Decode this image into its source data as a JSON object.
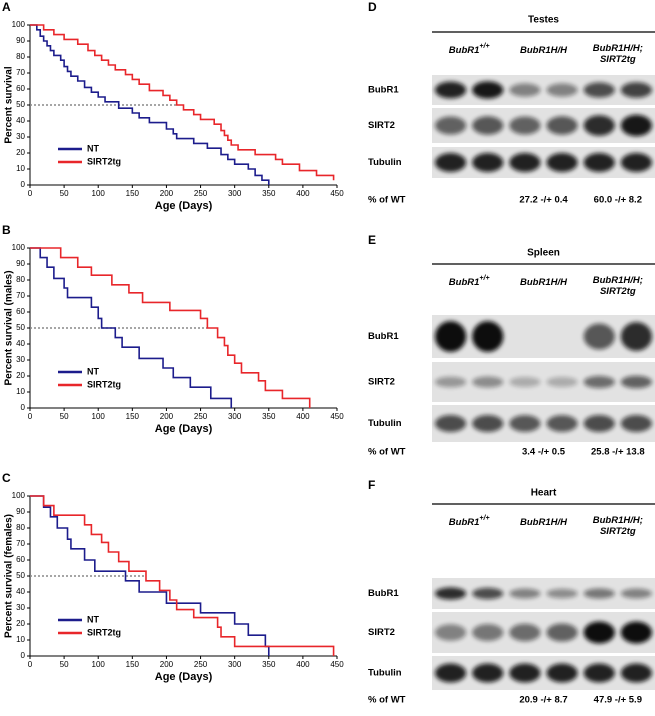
{
  "chart_data": [
    {
      "type": "line",
      "step": true,
      "panel": "A",
      "ylabel": "Percent survival",
      "xlabel": "Age (Days)",
      "xlim": [
        0,
        450
      ],
      "xticks": [
        0,
        50,
        100,
        150,
        200,
        250,
        300,
        350,
        400,
        450
      ],
      "ylim": [
        0,
        100
      ],
      "yticks": [
        0,
        10,
        20,
        30,
        40,
        50,
        60,
        70,
        80,
        90,
        100
      ],
      "reference_line": 50,
      "legend": "lower-left",
      "series": [
        {
          "name": "NT",
          "color": "#1c1c8c",
          "x": [
            0,
            10,
            15,
            20,
            25,
            30,
            35,
            45,
            50,
            55,
            60,
            70,
            80,
            90,
            100,
            110,
            130,
            150,
            160,
            175,
            200,
            210,
            215,
            240,
            260,
            280,
            290,
            300,
            320,
            330,
            340,
            350
          ],
          "values": [
            100,
            97,
            93,
            90,
            87,
            84,
            81,
            78,
            74,
            71,
            68,
            65,
            61,
            58,
            55,
            52,
            48,
            45,
            42,
            39,
            35,
            32,
            29,
            26,
            23,
            19,
            16,
            13,
            10,
            6,
            3,
            0
          ]
        },
        {
          "name": "SIRT2tg",
          "color": "#e8262a",
          "x": [
            0,
            20,
            35,
            50,
            70,
            85,
            95,
            105,
            115,
            125,
            140,
            150,
            160,
            175,
            195,
            205,
            215,
            225,
            240,
            250,
            270,
            280,
            285,
            290,
            295,
            305,
            330,
            360,
            370,
            395,
            420,
            445
          ],
          "values": [
            100,
            97,
            94,
            91,
            88,
            84,
            81,
            78,
            75,
            72,
            69,
            66,
            63,
            59,
            56,
            53,
            50,
            47,
            44,
            41,
            38,
            34,
            31,
            28,
            25,
            22,
            19,
            16,
            13,
            9,
            6,
            3
          ]
        }
      ]
    },
    {
      "type": "line",
      "step": true,
      "panel": "B",
      "ylabel": "Percent survival (males)",
      "xlabel": "Age (Days)",
      "xlim": [
        0,
        450
      ],
      "xticks": [
        0,
        50,
        100,
        150,
        200,
        250,
        300,
        350,
        400,
        450
      ],
      "ylim": [
        0,
        100
      ],
      "yticks": [
        0,
        10,
        20,
        30,
        40,
        50,
        60,
        70,
        80,
        90,
        100
      ],
      "reference_line": 50,
      "legend": "lower-left",
      "series": [
        {
          "name": "NT",
          "color": "#1c1c8c",
          "x": [
            0,
            15,
            25,
            35,
            50,
            55,
            90,
            100,
            105,
            125,
            135,
            160,
            195,
            210,
            235,
            265,
            295
          ],
          "values": [
            100,
            94,
            88,
            81,
            75,
            69,
            63,
            56,
            50,
            44,
            38,
            31,
            25,
            19,
            13,
            6,
            0
          ]
        },
        {
          "name": "SIRT2tg",
          "color": "#e8262a",
          "x": [
            0,
            45,
            70,
            90,
            120,
            145,
            165,
            205,
            250,
            260,
            275,
            285,
            290,
            300,
            310,
            335,
            345,
            370,
            410
          ],
          "values": [
            100,
            94,
            88,
            83,
            77,
            72,
            66,
            61,
            56,
            50,
            44,
            39,
            33,
            28,
            22,
            17,
            11,
            6,
            0
          ]
        }
      ]
    },
    {
      "type": "line",
      "step": true,
      "panel": "C",
      "ylabel": "Percent survival (females)",
      "xlabel": "Age (Days)",
      "xlim": [
        0,
        450
      ],
      "xticks": [
        0,
        50,
        100,
        150,
        200,
        250,
        300,
        350,
        400,
        450
      ],
      "ylim": [
        0,
        100
      ],
      "yticks": [
        0,
        10,
        20,
        30,
        40,
        50,
        60,
        70,
        80,
        90,
        100
      ],
      "reference_line": 50,
      "legend": "lower-left",
      "series": [
        {
          "name": "NT",
          "color": "#1c1c8c",
          "x": [
            0,
            20,
            30,
            40,
            55,
            60,
            80,
            95,
            140,
            160,
            200,
            250,
            300,
            320,
            345,
            350
          ],
          "values": [
            100,
            93,
            87,
            80,
            73,
            67,
            60,
            53,
            47,
            40,
            33,
            27,
            20,
            13,
            6,
            0
          ]
        },
        {
          "name": "SIRT2tg",
          "color": "#e8262a",
          "x": [
            0,
            20,
            35,
            80,
            90,
            105,
            115,
            130,
            145,
            170,
            190,
            205,
            215,
            240,
            275,
            280,
            300,
            445
          ],
          "values": [
            100,
            94,
            88,
            82,
            76,
            71,
            65,
            59,
            53,
            47,
            41,
            35,
            29,
            24,
            18,
            12,
            6,
            0
          ]
        }
      ]
    }
  ],
  "blots": [
    {
      "panel": "D",
      "title": "Testes",
      "groups": [
        {
          "lines": [
            "BubR1"
          ],
          "sup": "+/+"
        },
        {
          "lines": [
            "BubR1H/H"
          ]
        },
        {
          "lines": [
            "BubR1H/H;",
            "SIRT2tg"
          ]
        }
      ],
      "rows": [
        "BubR1",
        "SIRT2",
        "Tubulin"
      ],
      "quant_label": "% of WT",
      "quant": [
        "27.2 -/+ 0.4",
        "60.0 -/+ 8.2"
      ]
    },
    {
      "panel": "E",
      "title": "Spleen",
      "groups": [
        {
          "lines": [
            "BubR1"
          ],
          "sup": "+/+"
        },
        {
          "lines": [
            "BubR1H/H"
          ]
        },
        {
          "lines": [
            "BubR1H/H;",
            "SIRT2tg"
          ]
        }
      ],
      "rows": [
        "BubR1",
        "SIRT2",
        "Tubulin"
      ],
      "quant_label": "% of WT",
      "quant": [
        "3.4 -/+ 0.5",
        "25.8 -/+ 13.8"
      ]
    },
    {
      "panel": "F",
      "title": "Heart",
      "groups": [
        {
          "lines": [
            "BubR1"
          ],
          "sup": "+/+"
        },
        {
          "lines": [
            "BubR1H/H"
          ]
        },
        {
          "lines": [
            "BubR1H/H;",
            "SIRT2tg"
          ]
        }
      ],
      "rows": [
        "BubR1",
        "SIRT2",
        "Tubulin"
      ],
      "quant_label": "% of WT",
      "quant": [
        "20.9 -/+ 8.7",
        "47.9 -/+ 5.9"
      ]
    }
  ]
}
